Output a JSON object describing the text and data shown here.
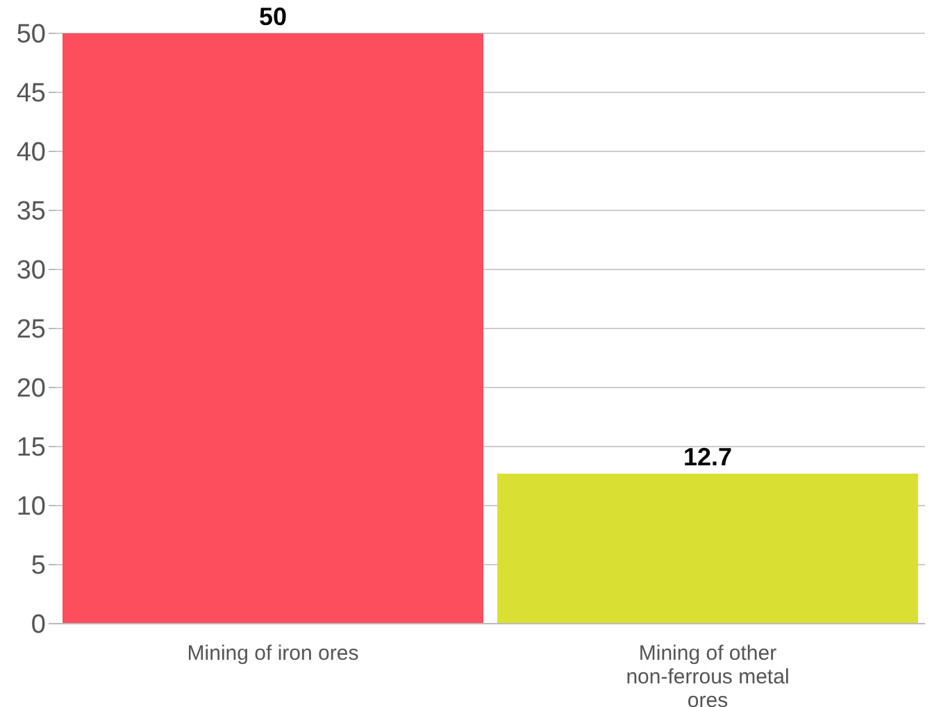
{
  "chart_data": {
    "type": "bar",
    "categories": [
      "Mining of iron ores",
      "Mining of other non-ferrous metal ores"
    ],
    "values": [
      50,
      12.7
    ],
    "colors": [
      "#fc4e5c",
      "#d9e033"
    ],
    "ylim": [
      0,
      50
    ],
    "yticks": [
      0,
      5,
      10,
      15,
      20,
      25,
      30,
      35,
      40,
      45,
      50
    ],
    "grid": "y",
    "data_labels": true
  }
}
